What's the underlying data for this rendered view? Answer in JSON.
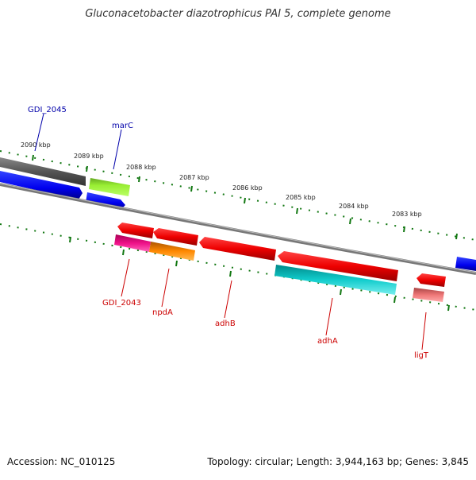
{
  "title": "Gluconacetobacter diazotrophicus PAI 5, complete genome",
  "footer": {
    "accession": "Accession: NC_010125",
    "summary": "Topology: circular; Length: 3,944,163 bp; Genes: 3,845"
  },
  "ticks": [
    "2090 kbp",
    "2089 kbp",
    "2088 kbp",
    "2087 kbp",
    "2086 kbp",
    "2085 kbp",
    "2084 kbp",
    "2083 kbp"
  ],
  "genes_top": [
    {
      "name": "GDI_2045",
      "color": "#0000aa",
      "feature_colors": [
        "#555555",
        "#0000ee"
      ]
    },
    {
      "name": "marC",
      "color": "#0000aa",
      "feature_colors": [
        "#99ee33",
        "#0000ee"
      ]
    }
  ],
  "genes_bottom": [
    {
      "name": "GDI_2043",
      "color": "#cc0000",
      "feature_colors": [
        "#ee0000",
        "#ee1188"
      ]
    },
    {
      "name": "npdA",
      "color": "#cc0000",
      "feature_colors": [
        "#ee0000",
        "#ff8800"
      ]
    },
    {
      "name": "adhB",
      "color": "#cc0000",
      "feature_colors": [
        "#ee0000"
      ]
    },
    {
      "name": "adhA",
      "color": "#cc0000",
      "feature_colors": [
        "#ee0000",
        "#11cccc"
      ]
    },
    {
      "name": "ligT",
      "color": "#cc0000",
      "feature_colors": [
        "#ee0000",
        "#ee7777"
      ]
    }
  ],
  "colors": {
    "backbone": "#888888",
    "ticks": "#117711",
    "forward_gene": "#0000ee",
    "reverse_gene": "#ee0000"
  }
}
